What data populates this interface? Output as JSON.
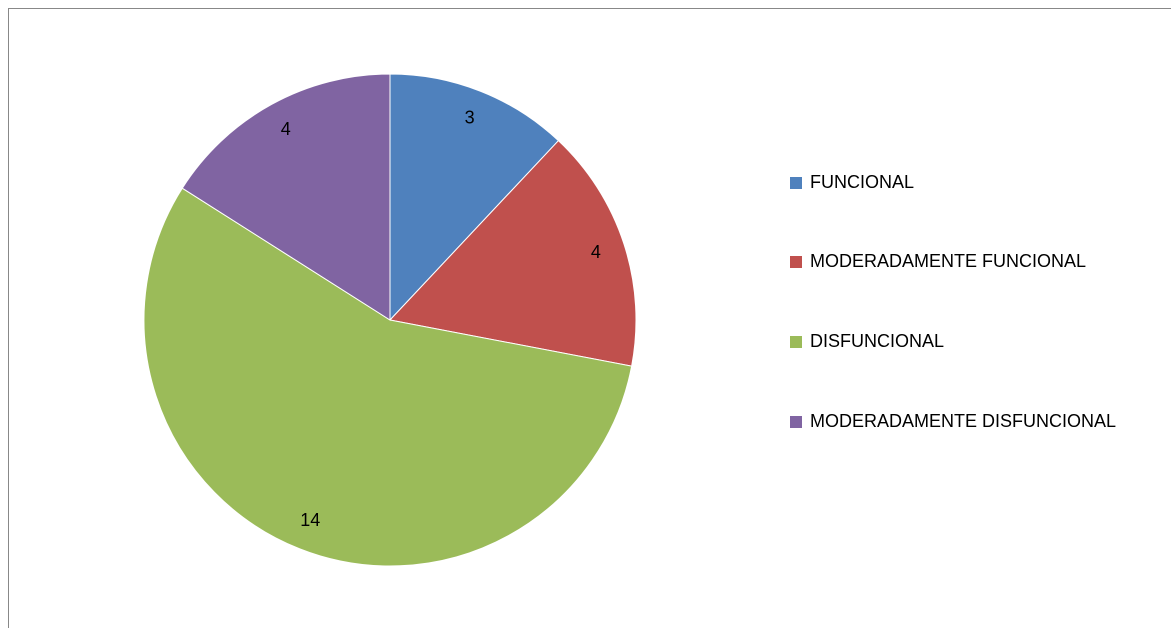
{
  "chart_data": {
    "type": "pie",
    "categories": [
      "FUNCIONAL",
      "MODERADAMENTE FUNCIONAL",
      "DISFUNCIONAL",
      "MODERADAMENTE DISFUNCIONAL"
    ],
    "values": [
      3,
      4,
      14,
      4
    ],
    "colors": [
      "#4f81bd",
      "#c0504d",
      "#9bbb59",
      "#8064a2"
    ],
    "legend": "right"
  }
}
